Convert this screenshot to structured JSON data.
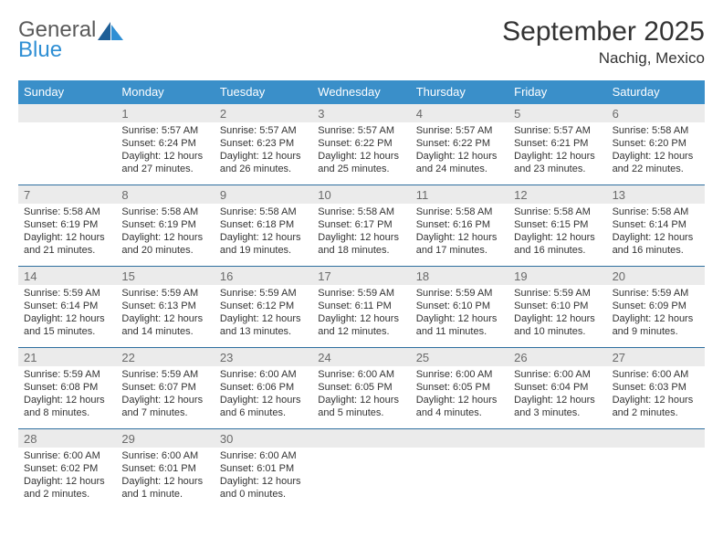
{
  "brand": {
    "word1": "General",
    "word2": "Blue",
    "color_gray": "#5a5a5a",
    "color_blue": "#2f8fd4"
  },
  "title": "September 2025",
  "location": "Nachig, Mexico",
  "header_bg": "#3a8fc9",
  "daynum_bg": "#ebebeb",
  "week_border": "#2f6f9f",
  "text_color": "#333333",
  "font_family": "Arial, Helvetica, sans-serif",
  "title_fontsize": 30,
  "location_fontsize": 17,
  "dayheader_fontsize": 13,
  "cell_fontsize": 11,
  "day_names": [
    "Sunday",
    "Monday",
    "Tuesday",
    "Wednesday",
    "Thursday",
    "Friday",
    "Saturday"
  ],
  "weeks": [
    [
      {
        "n": "",
        "l1": "",
        "l2": "",
        "l3": "",
        "l4": ""
      },
      {
        "n": "1",
        "l1": "Sunrise: 5:57 AM",
        "l2": "Sunset: 6:24 PM",
        "l3": "Daylight: 12 hours",
        "l4": "and 27 minutes."
      },
      {
        "n": "2",
        "l1": "Sunrise: 5:57 AM",
        "l2": "Sunset: 6:23 PM",
        "l3": "Daylight: 12 hours",
        "l4": "and 26 minutes."
      },
      {
        "n": "3",
        "l1": "Sunrise: 5:57 AM",
        "l2": "Sunset: 6:22 PM",
        "l3": "Daylight: 12 hours",
        "l4": "and 25 minutes."
      },
      {
        "n": "4",
        "l1": "Sunrise: 5:57 AM",
        "l2": "Sunset: 6:22 PM",
        "l3": "Daylight: 12 hours",
        "l4": "and 24 minutes."
      },
      {
        "n": "5",
        "l1": "Sunrise: 5:57 AM",
        "l2": "Sunset: 6:21 PM",
        "l3": "Daylight: 12 hours",
        "l4": "and 23 minutes."
      },
      {
        "n": "6",
        "l1": "Sunrise: 5:58 AM",
        "l2": "Sunset: 6:20 PM",
        "l3": "Daylight: 12 hours",
        "l4": "and 22 minutes."
      }
    ],
    [
      {
        "n": "7",
        "l1": "Sunrise: 5:58 AM",
        "l2": "Sunset: 6:19 PM",
        "l3": "Daylight: 12 hours",
        "l4": "and 21 minutes."
      },
      {
        "n": "8",
        "l1": "Sunrise: 5:58 AM",
        "l2": "Sunset: 6:19 PM",
        "l3": "Daylight: 12 hours",
        "l4": "and 20 minutes."
      },
      {
        "n": "9",
        "l1": "Sunrise: 5:58 AM",
        "l2": "Sunset: 6:18 PM",
        "l3": "Daylight: 12 hours",
        "l4": "and 19 minutes."
      },
      {
        "n": "10",
        "l1": "Sunrise: 5:58 AM",
        "l2": "Sunset: 6:17 PM",
        "l3": "Daylight: 12 hours",
        "l4": "and 18 minutes."
      },
      {
        "n": "11",
        "l1": "Sunrise: 5:58 AM",
        "l2": "Sunset: 6:16 PM",
        "l3": "Daylight: 12 hours",
        "l4": "and 17 minutes."
      },
      {
        "n": "12",
        "l1": "Sunrise: 5:58 AM",
        "l2": "Sunset: 6:15 PM",
        "l3": "Daylight: 12 hours",
        "l4": "and 16 minutes."
      },
      {
        "n": "13",
        "l1": "Sunrise: 5:58 AM",
        "l2": "Sunset: 6:14 PM",
        "l3": "Daylight: 12 hours",
        "l4": "and 16 minutes."
      }
    ],
    [
      {
        "n": "14",
        "l1": "Sunrise: 5:59 AM",
        "l2": "Sunset: 6:14 PM",
        "l3": "Daylight: 12 hours",
        "l4": "and 15 minutes."
      },
      {
        "n": "15",
        "l1": "Sunrise: 5:59 AM",
        "l2": "Sunset: 6:13 PM",
        "l3": "Daylight: 12 hours",
        "l4": "and 14 minutes."
      },
      {
        "n": "16",
        "l1": "Sunrise: 5:59 AM",
        "l2": "Sunset: 6:12 PM",
        "l3": "Daylight: 12 hours",
        "l4": "and 13 minutes."
      },
      {
        "n": "17",
        "l1": "Sunrise: 5:59 AM",
        "l2": "Sunset: 6:11 PM",
        "l3": "Daylight: 12 hours",
        "l4": "and 12 minutes."
      },
      {
        "n": "18",
        "l1": "Sunrise: 5:59 AM",
        "l2": "Sunset: 6:10 PM",
        "l3": "Daylight: 12 hours",
        "l4": "and 11 minutes."
      },
      {
        "n": "19",
        "l1": "Sunrise: 5:59 AM",
        "l2": "Sunset: 6:10 PM",
        "l3": "Daylight: 12 hours",
        "l4": "and 10 minutes."
      },
      {
        "n": "20",
        "l1": "Sunrise: 5:59 AM",
        "l2": "Sunset: 6:09 PM",
        "l3": "Daylight: 12 hours",
        "l4": "and 9 minutes."
      }
    ],
    [
      {
        "n": "21",
        "l1": "Sunrise: 5:59 AM",
        "l2": "Sunset: 6:08 PM",
        "l3": "Daylight: 12 hours",
        "l4": "and 8 minutes."
      },
      {
        "n": "22",
        "l1": "Sunrise: 5:59 AM",
        "l2": "Sunset: 6:07 PM",
        "l3": "Daylight: 12 hours",
        "l4": "and 7 minutes."
      },
      {
        "n": "23",
        "l1": "Sunrise: 6:00 AM",
        "l2": "Sunset: 6:06 PM",
        "l3": "Daylight: 12 hours",
        "l4": "and 6 minutes."
      },
      {
        "n": "24",
        "l1": "Sunrise: 6:00 AM",
        "l2": "Sunset: 6:05 PM",
        "l3": "Daylight: 12 hours",
        "l4": "and 5 minutes."
      },
      {
        "n": "25",
        "l1": "Sunrise: 6:00 AM",
        "l2": "Sunset: 6:05 PM",
        "l3": "Daylight: 12 hours",
        "l4": "and 4 minutes."
      },
      {
        "n": "26",
        "l1": "Sunrise: 6:00 AM",
        "l2": "Sunset: 6:04 PM",
        "l3": "Daylight: 12 hours",
        "l4": "and 3 minutes."
      },
      {
        "n": "27",
        "l1": "Sunrise: 6:00 AM",
        "l2": "Sunset: 6:03 PM",
        "l3": "Daylight: 12 hours",
        "l4": "and 2 minutes."
      }
    ],
    [
      {
        "n": "28",
        "l1": "Sunrise: 6:00 AM",
        "l2": "Sunset: 6:02 PM",
        "l3": "Daylight: 12 hours",
        "l4": "and 2 minutes."
      },
      {
        "n": "29",
        "l1": "Sunrise: 6:00 AM",
        "l2": "Sunset: 6:01 PM",
        "l3": "Daylight: 12 hours",
        "l4": "and 1 minute."
      },
      {
        "n": "30",
        "l1": "Sunrise: 6:00 AM",
        "l2": "Sunset: 6:01 PM",
        "l3": "Daylight: 12 hours",
        "l4": "and 0 minutes."
      },
      {
        "n": "",
        "l1": "",
        "l2": "",
        "l3": "",
        "l4": ""
      },
      {
        "n": "",
        "l1": "",
        "l2": "",
        "l3": "",
        "l4": ""
      },
      {
        "n": "",
        "l1": "",
        "l2": "",
        "l3": "",
        "l4": ""
      },
      {
        "n": "",
        "l1": "",
        "l2": "",
        "l3": "",
        "l4": ""
      }
    ]
  ]
}
